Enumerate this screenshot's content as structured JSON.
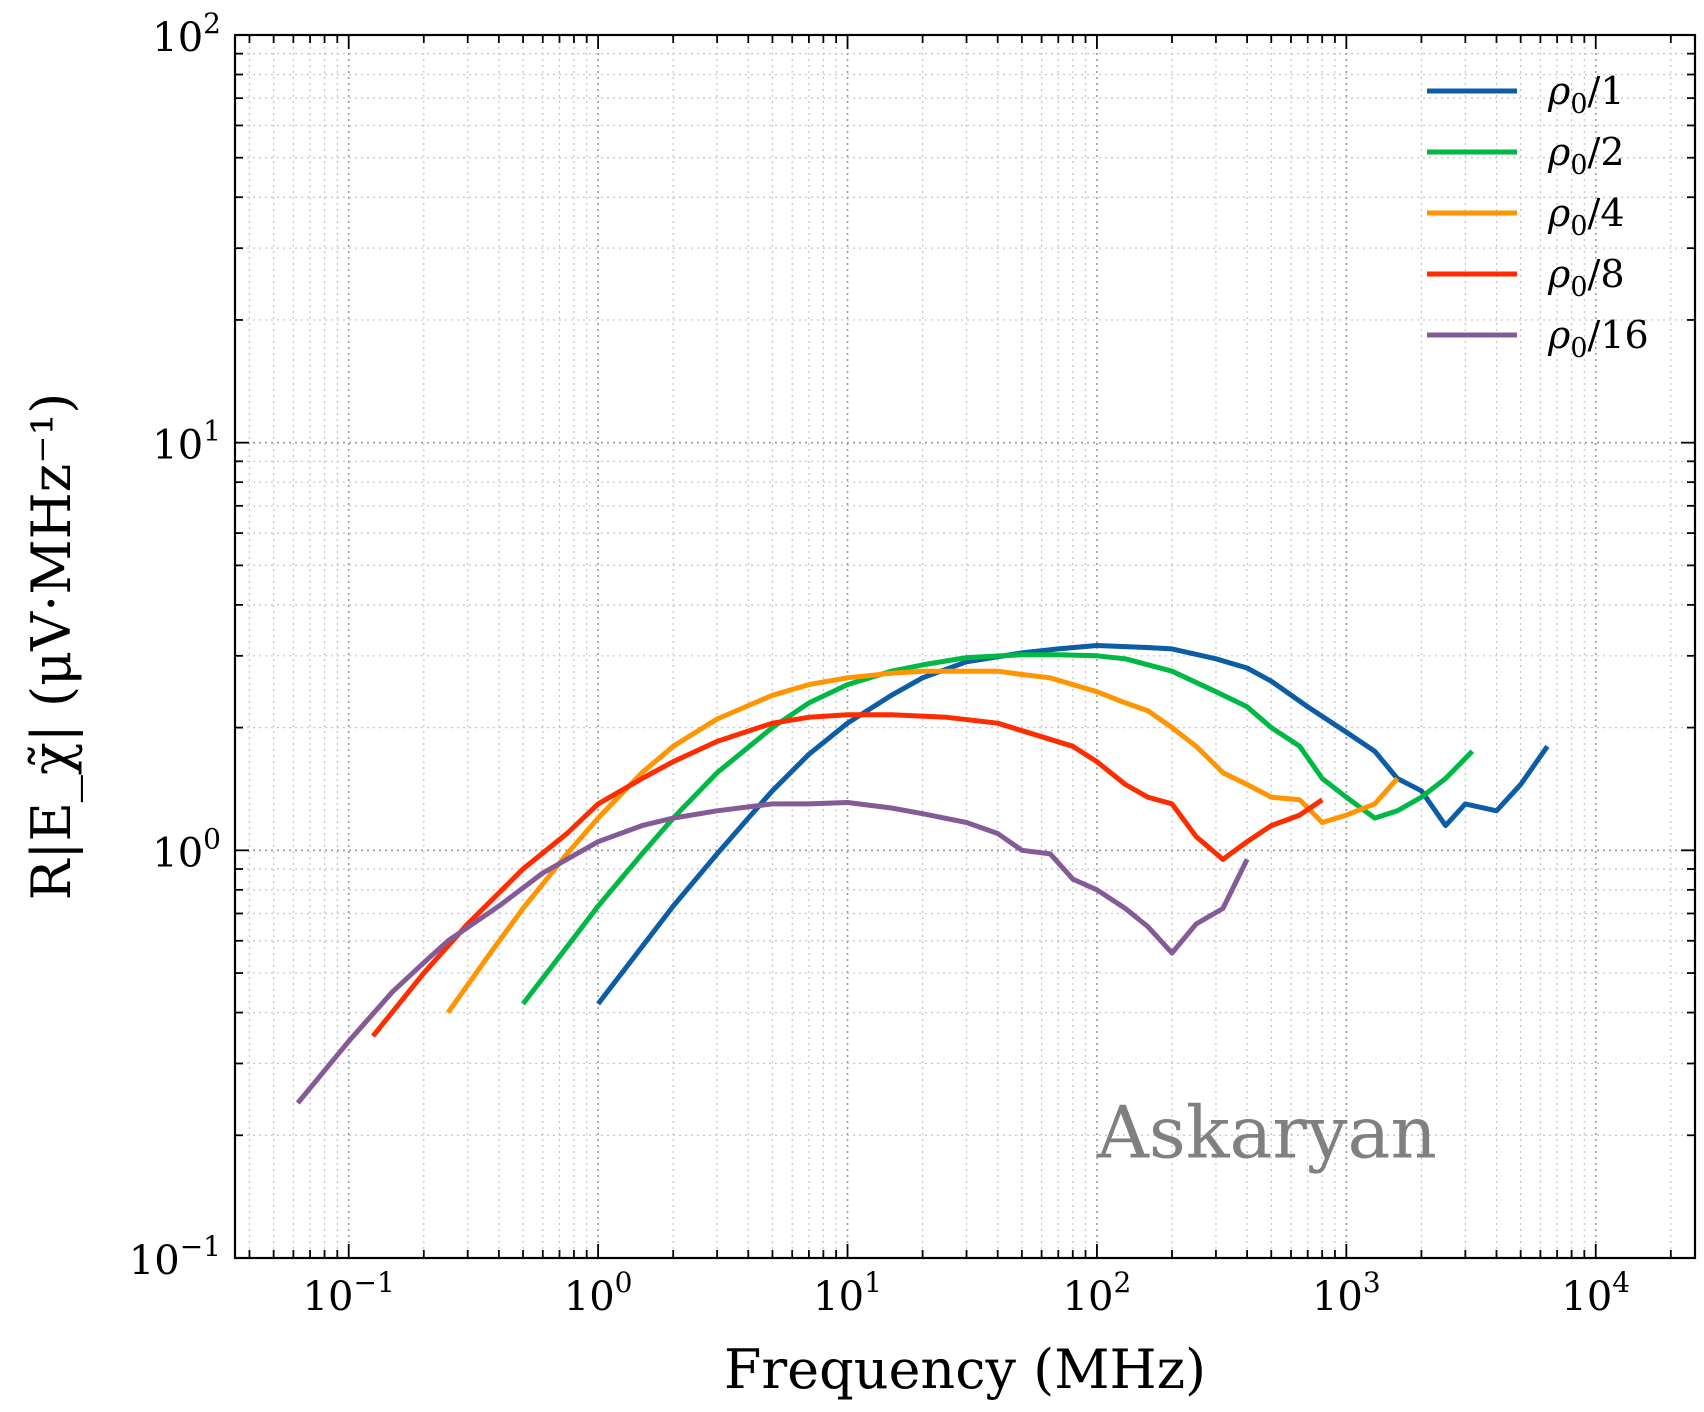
{
  "chart_data": {
    "type": "line",
    "xlabel": "Frequency (MHz)",
    "ylabel": "R|E_χ̃| (μV·MHz⁻¹)",
    "xscale": "log",
    "yscale": "log",
    "xlim": [
      0.035,
      25000
    ],
    "ylim": [
      0.1,
      100
    ],
    "grid": "major and minor, dotted",
    "legend_position": "top-right",
    "annotation": "Askaryan",
    "x_ticks": [
      {
        "value": 0.1,
        "base": "10",
        "exp": "−1"
      },
      {
        "value": 1,
        "base": "10",
        "exp": "0"
      },
      {
        "value": 10,
        "base": "10",
        "exp": "1"
      },
      {
        "value": 100,
        "base": "10",
        "exp": "2"
      },
      {
        "value": 1000,
        "base": "10",
        "exp": "3"
      },
      {
        "value": 10000,
        "base": "10",
        "exp": "4"
      }
    ],
    "y_ticks": [
      {
        "value": 0.1,
        "base": "10",
        "exp": "−1"
      },
      {
        "value": 1,
        "base": "10",
        "exp": "0"
      },
      {
        "value": 10,
        "base": "10",
        "exp": "1"
      },
      {
        "value": 100,
        "base": "10",
        "exp": "2"
      }
    ],
    "series": [
      {
        "name": "ρ0/1",
        "name_base": "ρ",
        "name_sub": "0",
        "name_tail": "/1",
        "color": "#0c5da5",
        "x": [
          1,
          1.5,
          2,
          3,
          4,
          5,
          7,
          10,
          15,
          20,
          30,
          50,
          70,
          100,
          150,
          200,
          300,
          400,
          500,
          700,
          1000,
          1300,
          1600,
          2000,
          2500,
          3000,
          4000,
          5000,
          6400
        ],
        "y": [
          0.42,
          0.58,
          0.73,
          0.98,
          1.2,
          1.4,
          1.72,
          2.05,
          2.4,
          2.65,
          2.9,
          3.05,
          3.12,
          3.18,
          3.15,
          3.12,
          2.95,
          2.8,
          2.6,
          2.25,
          1.95,
          1.75,
          1.5,
          1.4,
          1.15,
          1.3,
          1.25,
          1.45,
          1.8
        ]
      },
      {
        "name": "ρ0/2",
        "name_base": "ρ",
        "name_sub": "0",
        "name_tail": "/2",
        "color": "#00b945",
        "x": [
          0.5,
          0.75,
          1,
          1.5,
          2,
          3,
          5,
          7,
          10,
          15,
          20,
          30,
          50,
          70,
          100,
          130,
          200,
          300,
          400,
          500,
          650,
          800,
          1000,
          1300,
          1600,
          2000,
          2500,
          3200
        ],
        "y": [
          0.42,
          0.58,
          0.73,
          0.98,
          1.2,
          1.55,
          2.0,
          2.3,
          2.55,
          2.75,
          2.85,
          2.97,
          3.02,
          3.02,
          3.0,
          2.95,
          2.75,
          2.45,
          2.25,
          2.0,
          1.8,
          1.5,
          1.35,
          1.2,
          1.25,
          1.35,
          1.5,
          1.75
        ]
      },
      {
        "name": "ρ0/4",
        "name_base": "ρ",
        "name_sub": "0",
        "name_tail": "/4",
        "color": "#ff9500",
        "x": [
          0.25,
          0.37,
          0.5,
          0.75,
          1,
          1.5,
          2,
          3,
          5,
          7,
          10,
          15,
          20,
          30,
          40,
          50,
          65,
          80,
          100,
          130,
          160,
          200,
          250,
          320,
          400,
          500,
          650,
          800,
          1000,
          1300,
          1600
        ],
        "y": [
          0.4,
          0.56,
          0.72,
          0.98,
          1.2,
          1.55,
          1.8,
          2.1,
          2.4,
          2.55,
          2.65,
          2.72,
          2.75,
          2.75,
          2.75,
          2.7,
          2.65,
          2.55,
          2.45,
          2.3,
          2.2,
          2.0,
          1.8,
          1.55,
          1.45,
          1.35,
          1.33,
          1.17,
          1.22,
          1.3,
          1.5
        ]
      },
      {
        "name": "ρ0/8",
        "name_base": "ρ",
        "name_sub": "0",
        "name_tail": "/8",
        "color": "#ff2c00",
        "x": [
          0.125,
          0.2,
          0.3,
          0.5,
          0.75,
          1,
          1.5,
          2,
          3,
          5,
          7,
          10,
          15,
          25,
          40,
          60,
          80,
          100,
          130,
          160,
          200,
          250,
          320,
          400,
          500,
          650,
          800
        ],
        "y": [
          0.35,
          0.5,
          0.66,
          0.9,
          1.1,
          1.3,
          1.5,
          1.65,
          1.85,
          2.05,
          2.12,
          2.15,
          2.15,
          2.12,
          2.05,
          1.9,
          1.8,
          1.65,
          1.45,
          1.35,
          1.3,
          1.08,
          0.95,
          1.05,
          1.15,
          1.22,
          1.33
        ]
      },
      {
        "name": "ρ0/16",
        "name_base": "ρ",
        "name_sub": "0",
        "name_tail": "/16",
        "color": "#845b97",
        "x": [
          0.0625,
          0.1,
          0.15,
          0.2,
          0.25,
          0.4,
          0.6,
          1,
          1.5,
          2,
          3,
          5,
          7,
          10,
          15,
          20,
          30,
          40,
          50,
          65,
          80,
          100,
          130,
          160,
          200,
          250,
          320,
          400
        ],
        "y": [
          0.24,
          0.34,
          0.45,
          0.53,
          0.6,
          0.73,
          0.88,
          1.05,
          1.15,
          1.2,
          1.25,
          1.3,
          1.3,
          1.31,
          1.27,
          1.23,
          1.17,
          1.1,
          1.0,
          0.98,
          0.85,
          0.8,
          0.72,
          0.65,
          0.56,
          0.66,
          0.72,
          0.95
        ]
      }
    ]
  }
}
